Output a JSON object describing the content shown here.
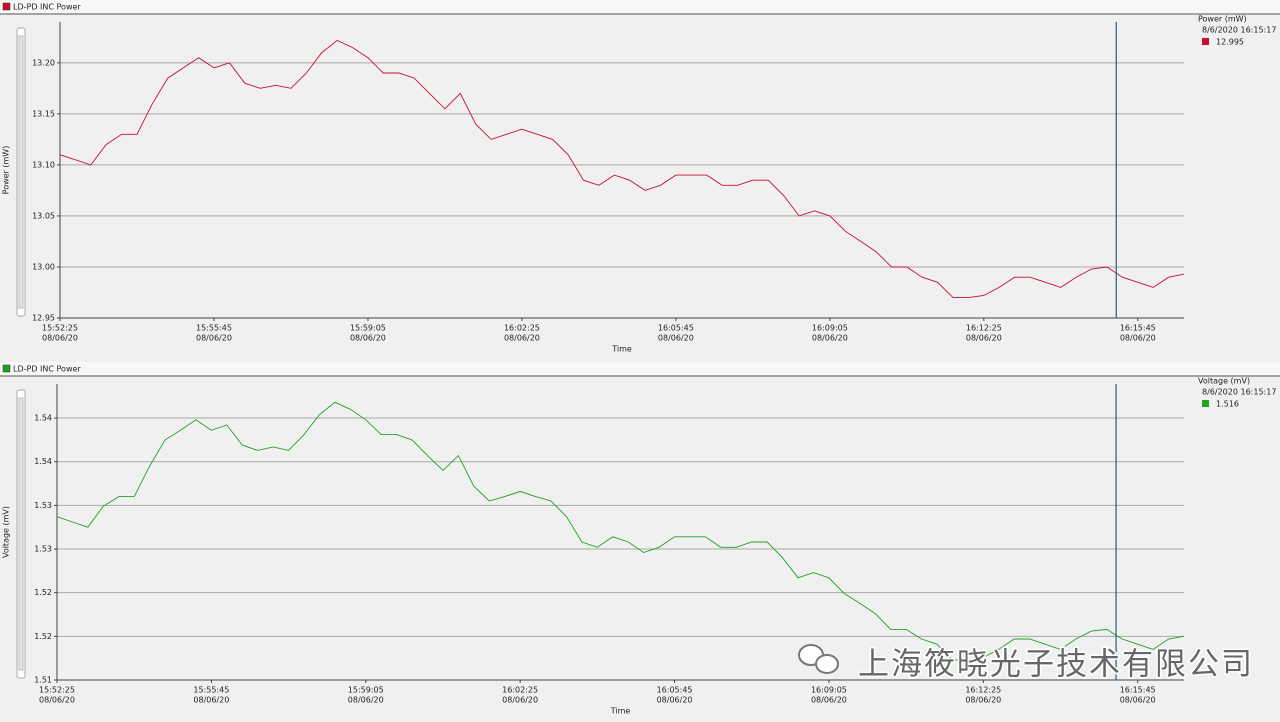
{
  "chart_data": [
    {
      "type": "line",
      "title": "LD-PD INC Power",
      "ylabel": "Power (mW)",
      "xlabel": "Time",
      "color": "#c8102e",
      "grid": true,
      "xlim": [
        57145,
        58605
      ],
      "ylim": [
        12.95,
        13.24
      ],
      "xticks": [
        {
          "value": 57145,
          "label": "15:52:25",
          "date": "08/06/20"
        },
        {
          "value": 57345,
          "label": "15:55:45",
          "date": "08/06/20"
        },
        {
          "value": 57545,
          "label": "15:59:05",
          "date": "08/06/20"
        },
        {
          "value": 57745,
          "label": "16:02:25",
          "date": "08/06/20"
        },
        {
          "value": 57945,
          "label": "16:05:45",
          "date": "08/06/20"
        },
        {
          "value": 58145,
          "label": "16:09:05",
          "date": "08/06/20"
        },
        {
          "value": 58345,
          "label": "16:12:25",
          "date": "08/06/20"
        },
        {
          "value": 58545,
          "label": "16:15:45",
          "date": "08/06/20"
        }
      ],
      "yticks": [
        12.95,
        {
          "value": 13,
          "label": "13.00"
        },
        13.05,
        {
          "value": 13.1,
          "label": "13.10"
        },
        13.15,
        {
          "value": 13.2,
          "label": "13.20"
        }
      ],
      "x": [
        57145,
        57165,
        57185,
        57205,
        57225,
        57245,
        57265,
        57285,
        57305,
        57325,
        57345,
        57365,
        57385,
        57405,
        57425,
        57445,
        57465,
        57485,
        57505,
        57525,
        57545,
        57565,
        57585,
        57605,
        57625,
        57645,
        57665,
        57685,
        57705,
        57725,
        57745,
        57765,
        57785,
        57805,
        57825,
        57845,
        57865,
        57885,
        57905,
        57925,
        57945,
        57965,
        57985,
        58005,
        58025,
        58045,
        58065,
        58085,
        58105,
        58125,
        58145,
        58165,
        58185,
        58205,
        58225,
        58245,
        58265,
        58285,
        58305,
        58325,
        58345,
        58365,
        58385,
        58405,
        58425,
        58445,
        58465,
        58485,
        58505,
        58525,
        58545,
        58565,
        58585,
        58605
      ],
      "values": [
        13.11,
        13.105,
        13.1,
        13.12,
        13.13,
        13.13,
        13.16,
        13.185,
        13.195,
        13.205,
        13.195,
        13.2,
        13.18,
        13.175,
        13.178,
        13.175,
        13.19,
        13.21,
        13.222,
        13.215,
        13.205,
        13.19,
        13.19,
        13.185,
        13.17,
        13.155,
        13.17,
        13.14,
        13.125,
        13.13,
        13.135,
        13.13,
        13.125,
        13.11,
        13.085,
        13.08,
        13.09,
        13.085,
        13.075,
        13.08,
        13.09,
        13.09,
        13.09,
        13.08,
        13.08,
        13.085,
        13.085,
        13.07,
        13.05,
        13.055,
        13.05,
        13.035,
        13.025,
        13.015,
        13.0,
        13.0,
        12.99,
        12.985,
        12.97,
        12.97,
        12.972,
        12.98,
        12.99,
        12.99,
        12.985,
        12.98,
        12.99,
        12.998,
        13.0,
        12.99,
        12.985,
        12.98,
        12.99,
        12.993
      ],
      "cursor": {
        "x": 58517,
        "label": "8/6/2020 16:15:17",
        "value": 12.995,
        "value_label": "12.995",
        "color": "#1f5f7f"
      },
      "legend_title": "Power (mW)"
    },
    {
      "type": "line",
      "title": "LD-PD INC Power",
      "ylabel": "Voltage (mV)",
      "xlabel": "Time",
      "color": "#22a022",
      "grid": true,
      "xlim": [
        57145,
        58605
      ],
      "ylim": [
        1.51,
        1.5439
      ],
      "xticks": [
        {
          "value": 57145,
          "label": "15:52:25",
          "date": "08/06/20"
        },
        {
          "value": 57345,
          "label": "15:55:45",
          "date": "08/06/20"
        },
        {
          "value": 57545,
          "label": "15:59:05",
          "date": "08/06/20"
        },
        {
          "value": 57745,
          "label": "16:02:25",
          "date": "08/06/20"
        },
        {
          "value": 57945,
          "label": "16:05:45",
          "date": "08/06/20"
        },
        {
          "value": 58145,
          "label": "16:09:05",
          "date": "08/06/20"
        },
        {
          "value": 58345,
          "label": "16:12:25",
          "date": "08/06/20"
        },
        {
          "value": 58545,
          "label": "16:15:45",
          "date": "08/06/20"
        }
      ],
      "yticks": [
        1.51,
        {
          "value": 1.515,
          "label": "1.52"
        },
        1.52,
        {
          "value": 1.525,
          "label": "1.53"
        },
        1.53,
        {
          "value": 1.535,
          "label": "1.54"
        },
        1.54
      ],
      "x": [
        57145,
        57165,
        57185,
        57205,
        57225,
        57245,
        57265,
        57285,
        57305,
        57325,
        57345,
        57365,
        57385,
        57405,
        57425,
        57445,
        57465,
        57485,
        57505,
        57525,
        57545,
        57565,
        57585,
        57605,
        57625,
        57645,
        57665,
        57685,
        57705,
        57725,
        57745,
        57765,
        57785,
        57805,
        57825,
        57845,
        57865,
        57885,
        57905,
        57925,
        57945,
        57965,
        57985,
        58005,
        58025,
        58045,
        58065,
        58085,
        58105,
        58125,
        58145,
        58165,
        58185,
        58205,
        58225,
        58245,
        58265,
        58285,
        58305,
        58325,
        58345,
        58365,
        58385,
        58405,
        58425,
        58445,
        58465,
        58485,
        58505,
        58525,
        58545,
        58565,
        58585,
        58605
      ],
      "values": [
        1.5287,
        1.5281,
        1.5275,
        1.5299,
        1.531,
        1.531,
        1.5345,
        1.5375,
        1.5386,
        1.5398,
        1.5386,
        1.5392,
        1.5369,
        1.5363,
        1.5367,
        1.5363,
        1.5381,
        1.5404,
        1.5418,
        1.541,
        1.5398,
        1.5381,
        1.5381,
        1.5375,
        1.5357,
        1.534,
        1.5357,
        1.5322,
        1.5305,
        1.531,
        1.5316,
        1.531,
        1.5305,
        1.5287,
        1.5258,
        1.5252,
        1.5264,
        1.5258,
        1.5246,
        1.5252,
        1.5264,
        1.5264,
        1.5264,
        1.5252,
        1.5252,
        1.5258,
        1.5258,
        1.524,
        1.5217,
        1.5223,
        1.5217,
        1.5199,
        1.5188,
        1.5176,
        1.5158,
        1.5158,
        1.5147,
        1.5141,
        1.5123,
        1.5123,
        1.5126,
        1.5135,
        1.5147,
        1.5147,
        1.5141,
        1.5135,
        1.5147,
        1.5156,
        1.5158,
        1.5147,
        1.5141,
        1.5135,
        1.5147,
        1.515
      ],
      "cursor": {
        "x": 58517,
        "label": "8/6/2020 16:15:17",
        "value": 1.516,
        "value_label": "1.516",
        "color": "#1f5f7f"
      },
      "legend_title": "Voltage (mV)"
    }
  ],
  "watermark": "上海筱晓光子技术有限公司"
}
